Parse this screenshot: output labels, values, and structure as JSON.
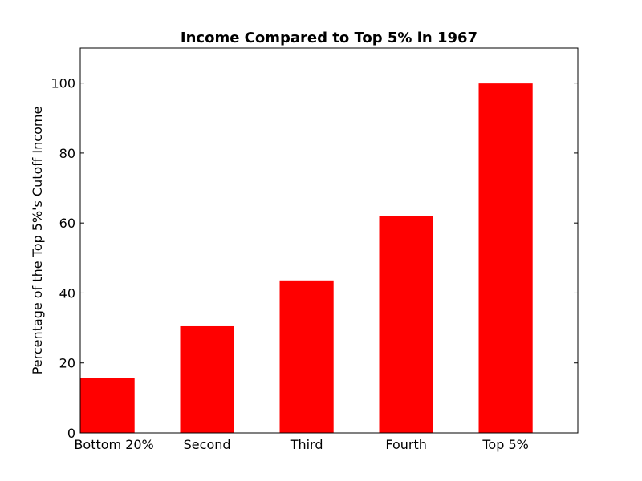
{
  "chart_data": {
    "type": "bar",
    "title": "Income Compared to Top 5% in 1967",
    "xlabel": "",
    "ylabel": "Percentage of the Top 5%'s Cutoff Income",
    "categories": [
      "Bottom 20%",
      "Second",
      "Third",
      "Fourth",
      "Top 5%"
    ],
    "values": [
      15.8,
      30.6,
      43.7,
      62.2,
      100
    ],
    "ylim": [
      0,
      110
    ],
    "yticks": [
      "0",
      "20",
      "40",
      "60",
      "80",
      "100"
    ],
    "grid": false,
    "bar_color": "#ff0000",
    "bar_edge_color": "#ffffff"
  }
}
